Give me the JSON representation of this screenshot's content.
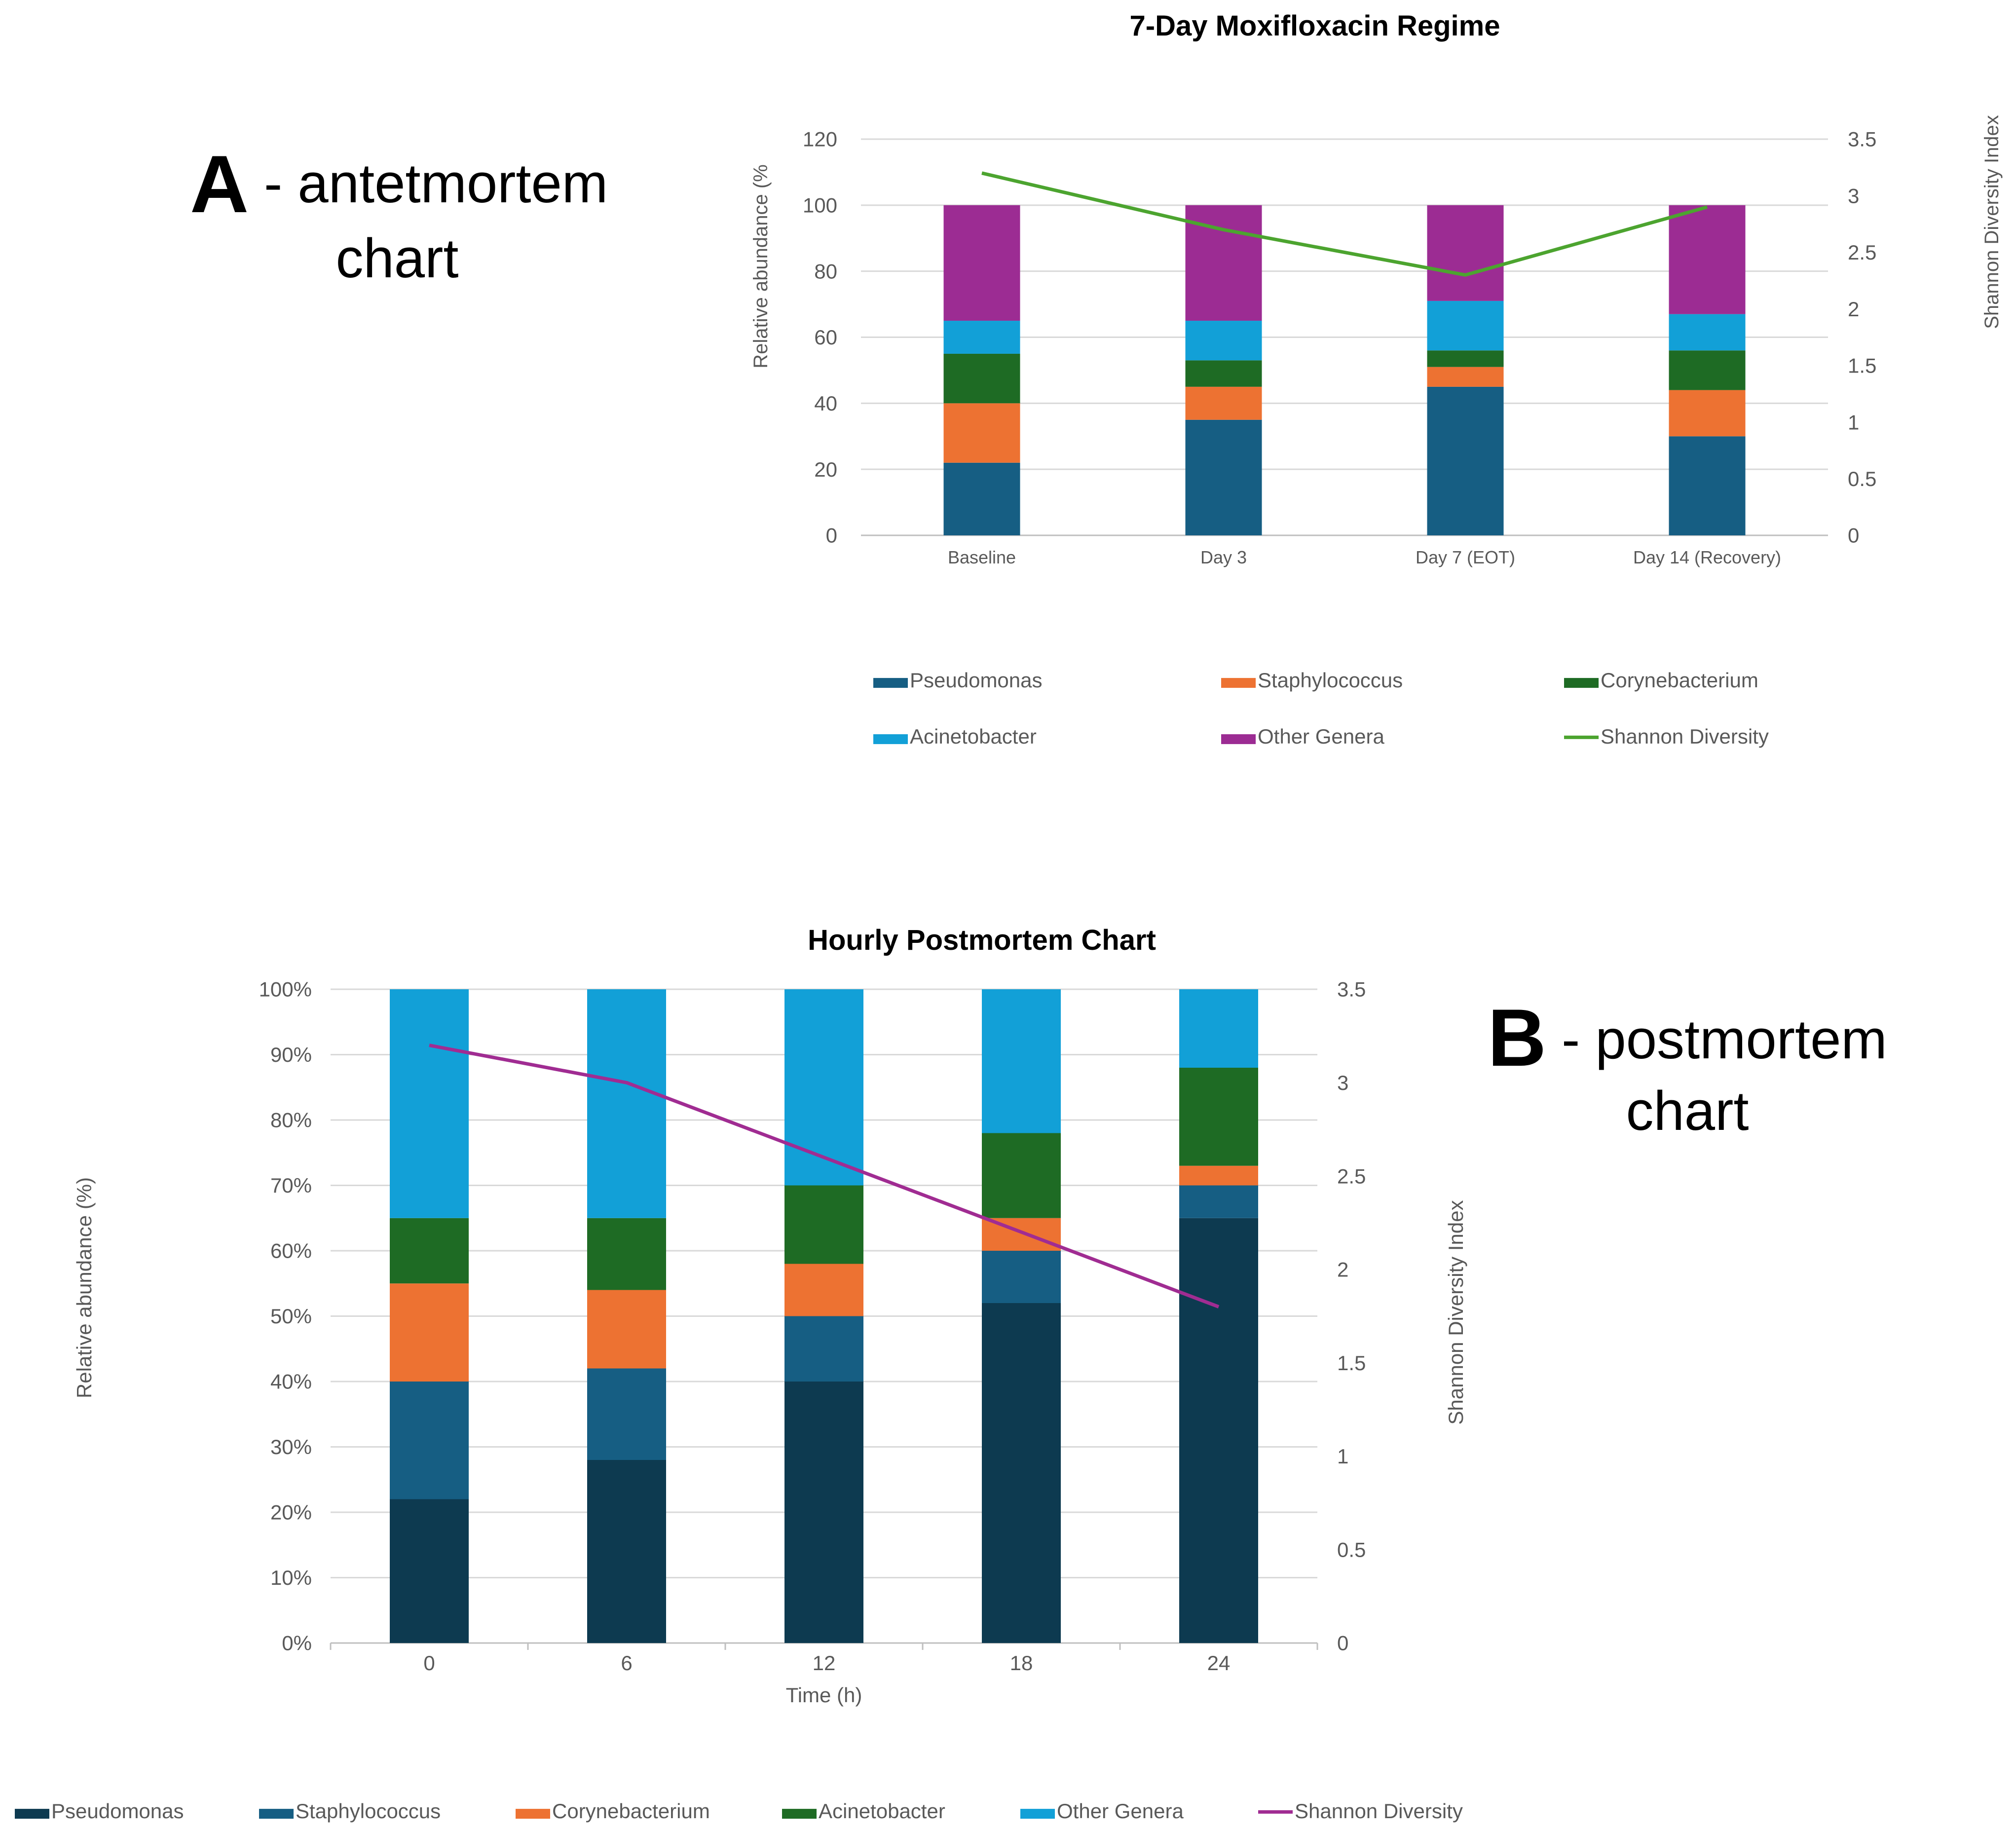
{
  "panel_a": {
    "letter": "A",
    "label_line1": "- antetmortem",
    "label_line2": "chart"
  },
  "panel_b": {
    "letter": "B",
    "label_line1": "- postmortem",
    "label_line2": "chart"
  },
  "chart_data": [
    {
      "type": "bar",
      "stacked": true,
      "title": "7-Day Moxifloxacin Regime",
      "xlabel": "",
      "ylabel": "Relative abundance (%",
      "y2label": "Shannon Diversity Index",
      "categories": [
        "Baseline",
        "Day 3",
        "Day 7 (EOT)",
        "Day 14 (Recovery)"
      ],
      "ylim": [
        0,
        120
      ],
      "yticks": [
        "0",
        "20",
        "40",
        "60",
        "80",
        "100",
        "120"
      ],
      "y2lim": [
        0,
        3.5
      ],
      "y2ticks": [
        "0",
        "0.5",
        "1",
        "1.5",
        "2",
        "2.5",
        "3",
        "3.5"
      ],
      "grid": true,
      "legend_position": "bottom",
      "series": [
        {
          "name": "Pseudomonas",
          "values": [
            22,
            35,
            45,
            30
          ],
          "color": "#165e83"
        },
        {
          "name": "Staphylococcus",
          "values": [
            18,
            10,
            6,
            14
          ],
          "color": "#ed7232"
        },
        {
          "name": "Corynebacterium",
          "values": [
            15,
            8,
            5,
            12
          ],
          "color": "#1e6b24"
        },
        {
          "name": "Acinetobacter",
          "values": [
            10,
            12,
            15,
            11
          ],
          "color": "#12a0d7"
        },
        {
          "name": "Other Genera",
          "values": [
            35,
            35,
            29,
            33
          ],
          "color": "#9c2c93"
        }
      ],
      "line_series": {
        "name": "Shannon Diversity",
        "values": [
          3.2,
          2.7,
          2.3,
          2.9
        ],
        "color": "#4ca42f"
      }
    },
    {
      "type": "bar",
      "stacked": true,
      "title": "Hourly Postmortem Chart",
      "xlabel": "Time (h)",
      "ylabel": "Relative abundance (%)",
      "y2label": "Shannon Diversity Index",
      "categories": [
        "0",
        "6",
        "12",
        "18",
        "24"
      ],
      "ylim": [
        0,
        100
      ],
      "yticks": [
        "0%",
        "10%",
        "20%",
        "30%",
        "40%",
        "50%",
        "60%",
        "70%",
        "80%",
        "90%",
        "100%"
      ],
      "y2lim": [
        0,
        3.5
      ],
      "y2ticks": [
        "0",
        "0.5",
        "1",
        "1.5",
        "2",
        "2.5",
        "3",
        "3.5"
      ],
      "grid": true,
      "legend_position": "bottom",
      "series": [
        {
          "name": "Pseudomonas",
          "values": [
            22,
            28,
            40,
            52,
            65
          ],
          "color": "#0d3a50"
        },
        {
          "name": "Staphylococcus",
          "values": [
            18,
            14,
            10,
            8,
            5
          ],
          "color": "#165e83"
        },
        {
          "name": "Corynebacterium",
          "values": [
            15,
            12,
            8,
            5,
            3
          ],
          "color": "#ed7232"
        },
        {
          "name": "Acinetobacter",
          "values": [
            10,
            11,
            12,
            13,
            15
          ],
          "color": "#1e6b24"
        },
        {
          "name": "Other Genera",
          "values": [
            35,
            35,
            30,
            22,
            12
          ],
          "color": "#12a0d7"
        }
      ],
      "line_series": {
        "name": "Shannon Diversity",
        "values": [
          3.2,
          3.0,
          2.6,
          2.2,
          1.8
        ],
        "color": "#a02c92"
      }
    }
  ]
}
